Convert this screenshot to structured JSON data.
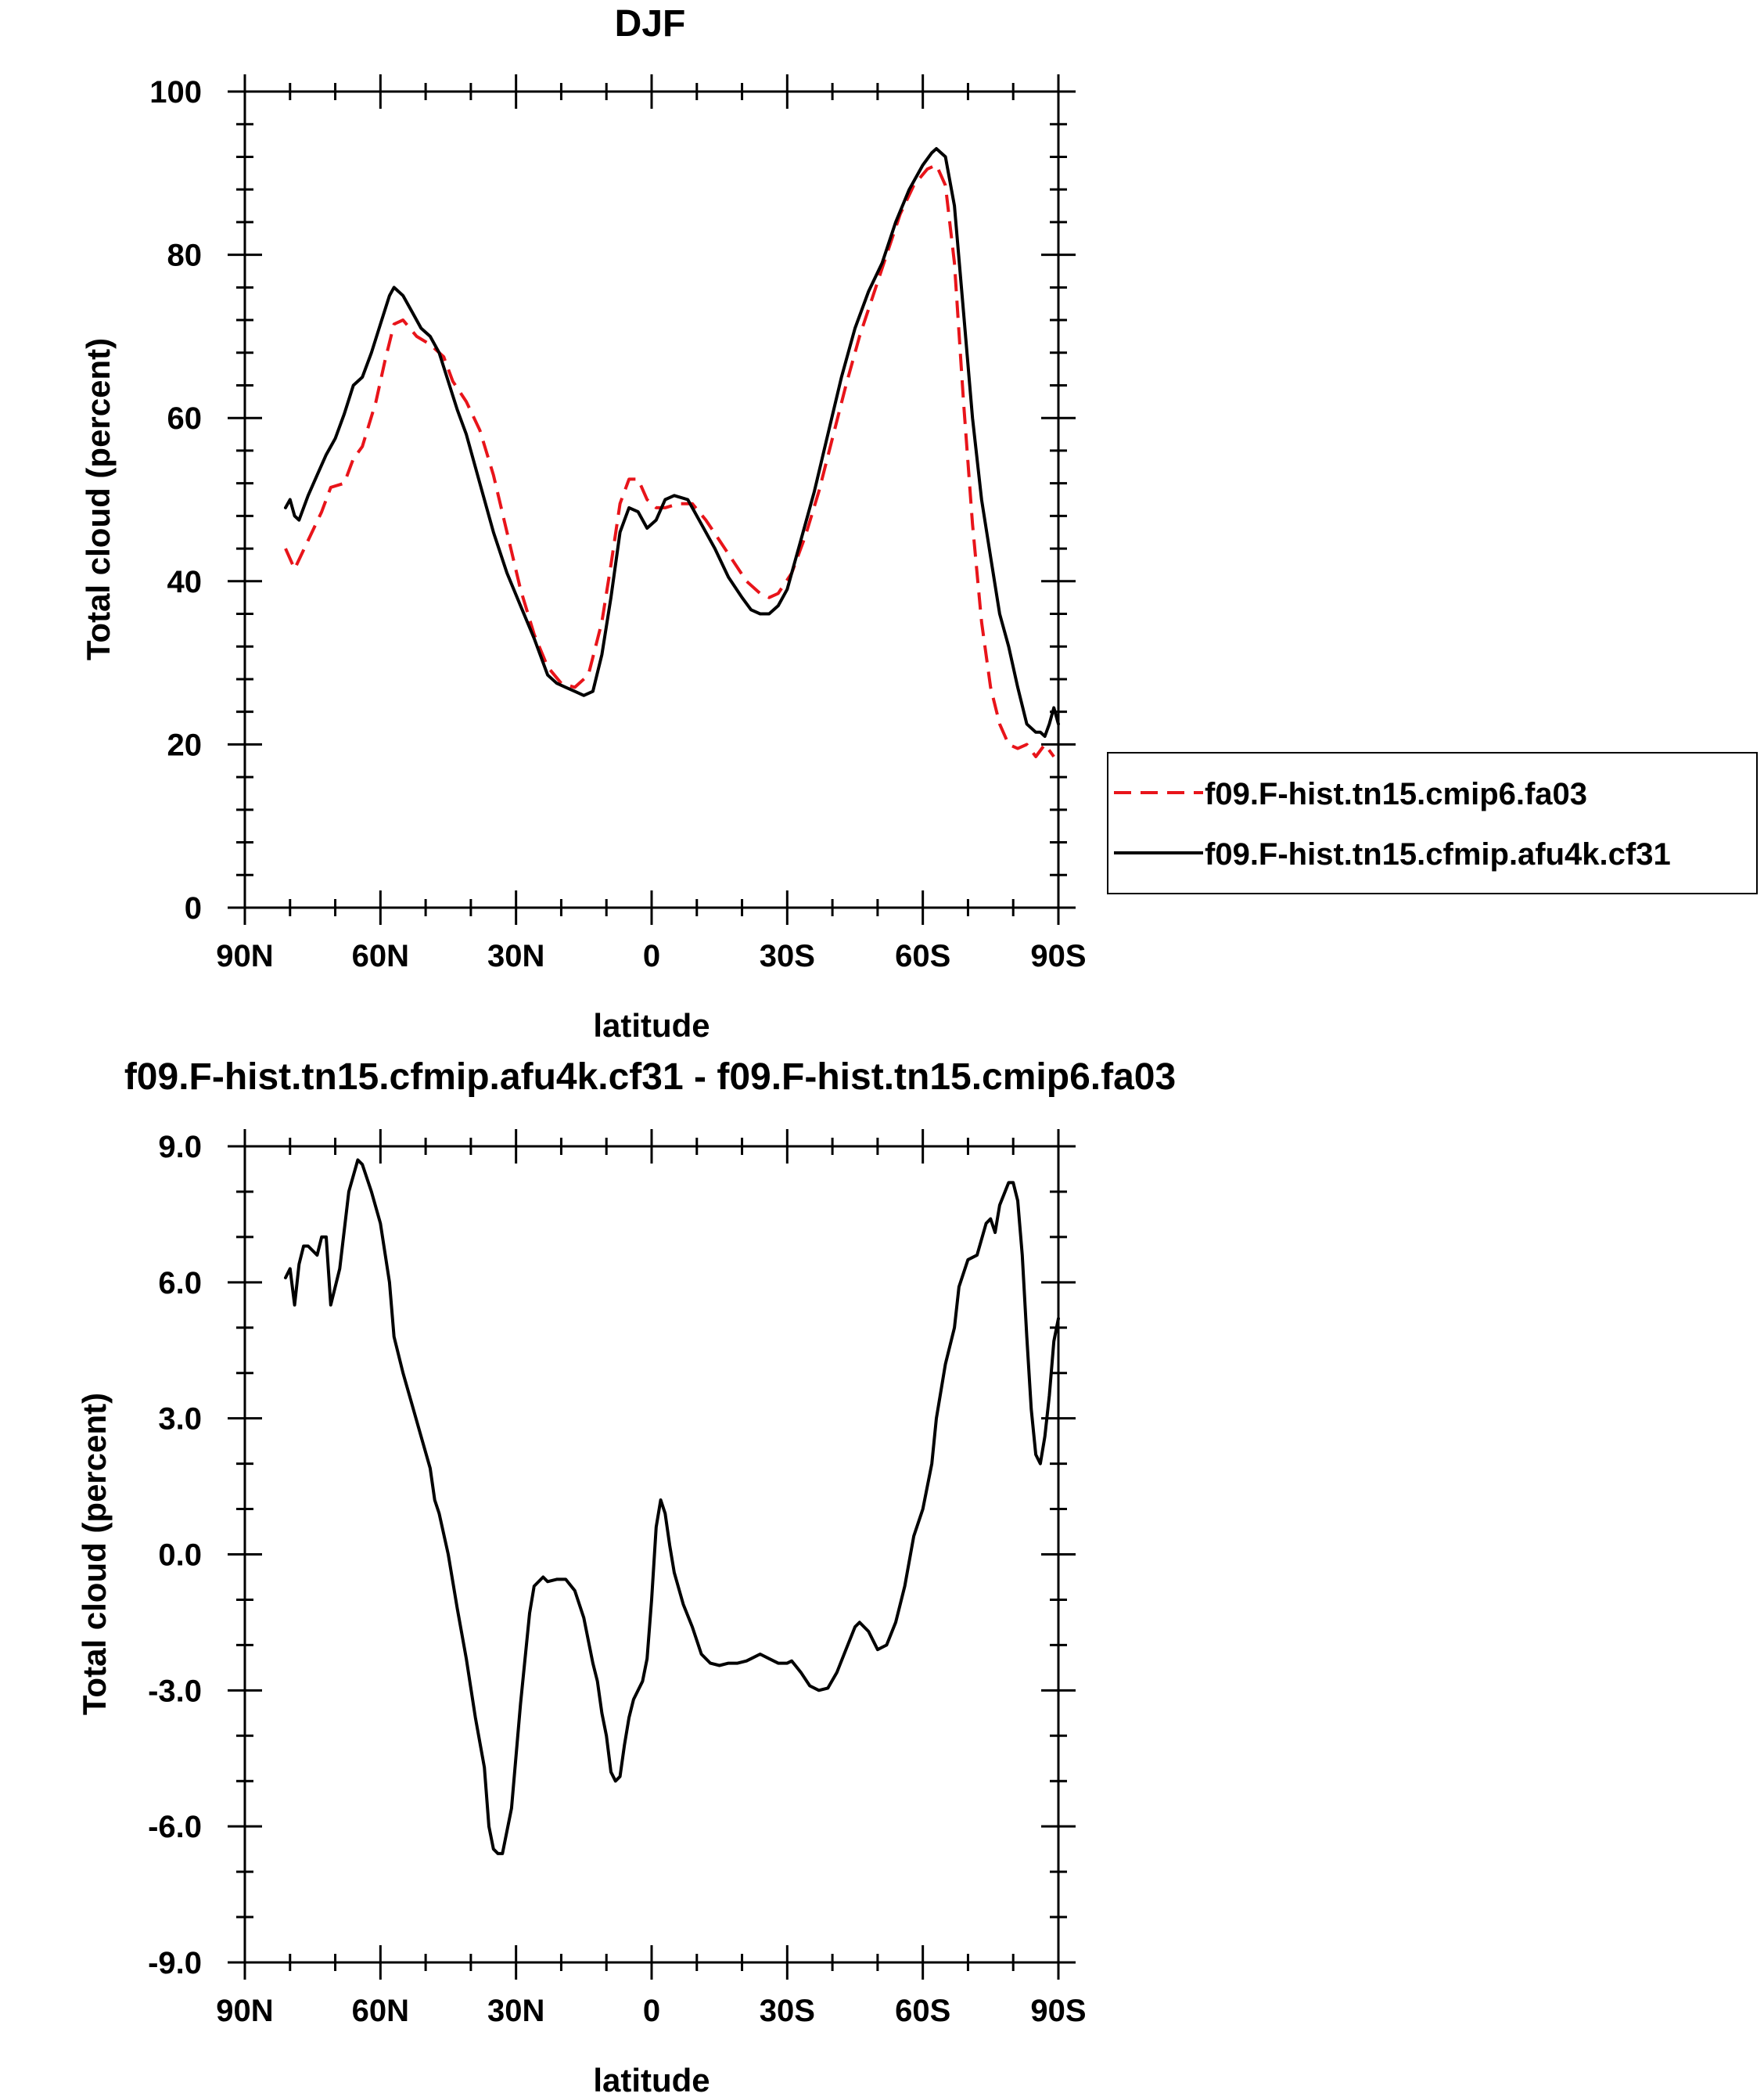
{
  "chart_data": [
    {
      "type": "line",
      "title": "DJF",
      "xlabel": "latitude",
      "ylabel": "Total cloud (percent)",
      "xlim": [
        -90,
        90
      ],
      "ylim": [
        0,
        100
      ],
      "x_ticks": [
        -90,
        -60,
        -30,
        0,
        30,
        60,
        90
      ],
      "x_tick_labels": [
        "90N",
        "60N",
        "30N",
        "0",
        "30S",
        "60S",
        "90S"
      ],
      "y_ticks": [
        0,
        20,
        40,
        60,
        80,
        100
      ],
      "y_tick_labels": [
        "0",
        "20",
        "40",
        "60",
        "80",
        "100"
      ],
      "legend_position": "right-outside",
      "series": [
        {
          "name": "f09.F-hist.tn15.cmip6.fa03",
          "color": "#e8141a",
          "dash": "dashed",
          "points": [
            [
              -81,
              44
            ],
            [
              -79,
              41.5
            ],
            [
              -76,
              45
            ],
            [
              -73,
              48.5
            ],
            [
              -71,
              51.5
            ],
            [
              -68,
              52
            ],
            [
              -66,
              55
            ],
            [
              -64,
              56.5
            ],
            [
              -61,
              62
            ],
            [
              -59,
              67
            ],
            [
              -57,
              71.5
            ],
            [
              -55,
              72
            ],
            [
              -52,
              70
            ],
            [
              -49,
              69
            ],
            [
              -46,
              67.5
            ],
            [
              -44,
              64.5
            ],
            [
              -41,
              62
            ],
            [
              -38,
              58.5
            ],
            [
              -35,
              53
            ],
            [
              -32,
              46
            ],
            [
              -29,
              39
            ],
            [
              -26,
              33.5
            ],
            [
              -23,
              29.5
            ],
            [
              -20,
              27.5
            ],
            [
              -17,
              27
            ],
            [
              -14,
              28.5
            ],
            [
              -11,
              35
            ],
            [
              -9,
              42
            ],
            [
              -7,
              49.5
            ],
            [
              -5,
              52.5
            ],
            [
              -3,
              52.5
            ],
            [
              -1,
              50
            ],
            [
              1,
              49
            ],
            [
              3,
              49
            ],
            [
              6,
              49.5
            ],
            [
              9,
              49.5
            ],
            [
              12,
              47.5
            ],
            [
              15,
              45
            ],
            [
              18,
              42.5
            ],
            [
              21,
              40
            ],
            [
              24,
              38.5
            ],
            [
              26,
              38
            ],
            [
              28,
              38.5
            ],
            [
              31,
              41
            ],
            [
              34,
              45.5
            ],
            [
              37,
              51
            ],
            [
              40,
              57.5
            ],
            [
              43,
              64
            ],
            [
              46,
              70
            ],
            [
              49,
              75
            ],
            [
              52,
              80
            ],
            [
              55,
              85
            ],
            [
              58,
              88.5
            ],
            [
              61,
              90.5
            ],
            [
              63,
              91
            ],
            [
              65,
              88.5
            ],
            [
              67,
              79
            ],
            [
              69,
              62
            ],
            [
              71,
              47
            ],
            [
              73,
              35
            ],
            [
              75,
              27
            ],
            [
              77,
              22.5
            ],
            [
              79,
              20
            ],
            [
              81,
              19.5
            ],
            [
              83,
              20
            ],
            [
              85,
              18.5
            ],
            [
              87,
              20
            ],
            [
              89,
              18.5
            ]
          ]
        },
        {
          "name": "f09.F-hist.tn15.cfmip.afu4k.cf31",
          "color": "#000000",
          "dash": "solid",
          "points": [
            [
              -81,
              49
            ],
            [
              -80,
              50
            ],
            [
              -79,
              48
            ],
            [
              -78,
              47.5
            ],
            [
              -76,
              50.5
            ],
            [
              -74,
              53
            ],
            [
              -72,
              55.5
            ],
            [
              -70,
              57.5
            ],
            [
              -68,
              60.5
            ],
            [
              -66,
              64
            ],
            [
              -64,
              65
            ],
            [
              -62,
              68
            ],
            [
              -60,
              71.5
            ],
            [
              -58,
              75
            ],
            [
              -57,
              76
            ],
            [
              -55,
              75
            ],
            [
              -53,
              73
            ],
            [
              -51,
              71
            ],
            [
              -49,
              70
            ],
            [
              -47,
              68
            ],
            [
              -45,
              64.5
            ],
            [
              -43,
              61
            ],
            [
              -41,
              58
            ],
            [
              -38,
              52
            ],
            [
              -35,
              46
            ],
            [
              -32,
              41
            ],
            [
              -29,
              37
            ],
            [
              -26,
              33
            ],
            [
              -23,
              28.5
            ],
            [
              -21,
              27.5
            ],
            [
              -19,
              27
            ],
            [
              -17,
              26.5
            ],
            [
              -15,
              26
            ],
            [
              -13,
              26.5
            ],
            [
              -11,
              31
            ],
            [
              -9,
              38
            ],
            [
              -7,
              46
            ],
            [
              -5,
              49
            ],
            [
              -3,
              48.5
            ],
            [
              -1,
              46.5
            ],
            [
              1,
              47.5
            ],
            [
              3,
              50
            ],
            [
              5,
              50.5
            ],
            [
              8,
              50
            ],
            [
              11,
              47
            ],
            [
              14,
              44
            ],
            [
              17,
              40.5
            ],
            [
              20,
              38
            ],
            [
              22,
              36.5
            ],
            [
              24,
              36
            ],
            [
              26,
              36
            ],
            [
              28,
              37
            ],
            [
              30,
              39
            ],
            [
              33,
              45
            ],
            [
              36,
              51
            ],
            [
              39,
              58
            ],
            [
              42,
              65
            ],
            [
              45,
              71
            ],
            [
              48,
              75.5
            ],
            [
              51,
              79
            ],
            [
              54,
              84
            ],
            [
              57,
              88
            ],
            [
              60,
              91
            ],
            [
              62,
              92.5
            ],
            [
              63,
              93
            ],
            [
              65,
              92
            ],
            [
              67,
              86
            ],
            [
              69,
              73
            ],
            [
              71,
              60
            ],
            [
              73,
              50
            ],
            [
              75,
              43
            ],
            [
              77,
              36
            ],
            [
              79,
              32
            ],
            [
              81,
              27
            ],
            [
              83,
              22.5
            ],
            [
              85,
              21.5
            ],
            [
              86,
              21.5
            ],
            [
              87,
              21
            ],
            [
              88,
              22.5
            ],
            [
              89,
              24.5
            ],
            [
              90,
              22.5
            ]
          ]
        }
      ]
    },
    {
      "type": "line",
      "title": "f09.F-hist.tn15.cfmip.afu4k.cf31 - f09.F-hist.tn15.cmip6.fa03",
      "xlabel": "latitude",
      "ylabel": "Total cloud (percent)",
      "xlim": [
        -90,
        90
      ],
      "ylim": [
        -9,
        9
      ],
      "x_ticks": [
        -90,
        -60,
        -30,
        0,
        30,
        60,
        90
      ],
      "x_tick_labels": [
        "90N",
        "60N",
        "30N",
        "0",
        "30S",
        "60S",
        "90S"
      ],
      "y_ticks": [
        -9,
        -6,
        -3,
        0,
        3,
        6,
        9
      ],
      "y_tick_labels": [
        "-9.0",
        "-6.0",
        "-3.0",
        "0.0",
        "3.0",
        "6.0",
        "9.0"
      ],
      "series": [
        {
          "color": "#000000",
          "dash": "solid",
          "points": [
            [
              -81,
              6.1
            ],
            [
              -80,
              6.3
            ],
            [
              -79,
              5.5
            ],
            [
              -78,
              6.4
            ],
            [
              -77,
              6.8
            ],
            [
              -76,
              6.8
            ],
            [
              -74,
              6.6
            ],
            [
              -73,
              7.0
            ],
            [
              -72,
              7.0
            ],
            [
              -71,
              5.5
            ],
            [
              -69,
              6.3
            ],
            [
              -67,
              8.0
            ],
            [
              -65,
              8.7
            ],
            [
              -64,
              8.6
            ],
            [
              -62,
              8.0
            ],
            [
              -60,
              7.3
            ],
            [
              -58,
              6.0
            ],
            [
              -57,
              4.8
            ],
            [
              -55,
              4.0
            ],
            [
              -53,
              3.3
            ],
            [
              -51,
              2.6
            ],
            [
              -49,
              1.9
            ],
            [
              -48,
              1.2
            ],
            [
              -47,
              0.9
            ],
            [
              -45,
              0.0
            ],
            [
              -43,
              -1.2
            ],
            [
              -41,
              -2.3
            ],
            [
              -39,
              -3.6
            ],
            [
              -37,
              -4.7
            ],
            [
              -36,
              -6.0
            ],
            [
              -35,
              -6.5
            ],
            [
              -34,
              -6.6
            ],
            [
              -33,
              -6.6
            ],
            [
              -31,
              -5.6
            ],
            [
              -29,
              -3.3
            ],
            [
              -27,
              -1.3
            ],
            [
              -26,
              -0.7
            ],
            [
              -24,
              -0.5
            ],
            [
              -23,
              -0.6
            ],
            [
              -21,
              -0.55
            ],
            [
              -19,
              -0.55
            ],
            [
              -17,
              -0.8
            ],
            [
              -15,
              -1.4
            ],
            [
              -13,
              -2.4
            ],
            [
              -12,
              -2.8
            ],
            [
              -11,
              -3.5
            ],
            [
              -10,
              -4.0
            ],
            [
              -9,
              -4.8
            ],
            [
              -8,
              -5.0
            ],
            [
              -7,
              -4.9
            ],
            [
              -6,
              -4.2
            ],
            [
              -5,
              -3.6
            ],
            [
              -4,
              -3.2
            ],
            [
              -2,
              -2.8
            ],
            [
              -1,
              -2.3
            ],
            [
              0,
              -1.0
            ],
            [
              1,
              0.6
            ],
            [
              2,
              1.2
            ],
            [
              3,
              0.9
            ],
            [
              4,
              0.2
            ],
            [
              5,
              -0.4
            ],
            [
              7,
              -1.1
            ],
            [
              9,
              -1.6
            ],
            [
              11,
              -2.2
            ],
            [
              13,
              -2.4
            ],
            [
              15,
              -2.45
            ],
            [
              17,
              -2.4
            ],
            [
              19,
              -2.4
            ],
            [
              21,
              -2.35
            ],
            [
              22,
              -2.3
            ],
            [
              24,
              -2.2
            ],
            [
              26,
              -2.3
            ],
            [
              28,
              -2.4
            ],
            [
              30,
              -2.4
            ],
            [
              31,
              -2.35
            ],
            [
              33,
              -2.6
            ],
            [
              35,
              -2.9
            ],
            [
              37,
              -3.0
            ],
            [
              39,
              -2.95
            ],
            [
              41,
              -2.6
            ],
            [
              43,
              -2.1
            ],
            [
              45,
              -1.6
            ],
            [
              46,
              -1.5
            ],
            [
              48,
              -1.7
            ],
            [
              50,
              -2.1
            ],
            [
              52,
              -2.0
            ],
            [
              54,
              -1.5
            ],
            [
              56,
              -0.7
            ],
            [
              58,
              0.4
            ],
            [
              60,
              1.0
            ],
            [
              62,
              2.0
            ],
            [
              63,
              3.0
            ],
            [
              65,
              4.2
            ],
            [
              67,
              5.0
            ],
            [
              68,
              5.9
            ],
            [
              70,
              6.5
            ],
            [
              72,
              6.6
            ],
            [
              74,
              7.3
            ],
            [
              75,
              7.4
            ],
            [
              76,
              7.1
            ],
            [
              77,
              7.7
            ],
            [
              79,
              8.2
            ],
            [
              80,
              8.2
            ],
            [
              81,
              7.8
            ],
            [
              82,
              6.6
            ],
            [
              83,
              4.8
            ],
            [
              84,
              3.2
            ],
            [
              85,
              2.2
            ],
            [
              86,
              2.0
            ],
            [
              87,
              2.6
            ],
            [
              88,
              3.5
            ],
            [
              89,
              4.7
            ],
            [
              90,
              5.2
            ]
          ]
        }
      ]
    }
  ]
}
